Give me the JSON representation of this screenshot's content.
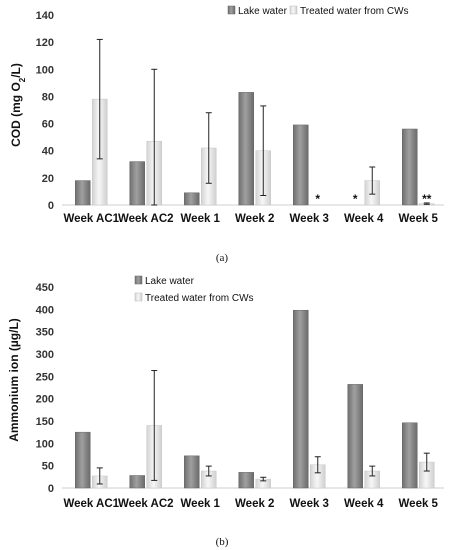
{
  "chart_data": [
    {
      "type": "bar",
      "categories": [
        "Week AC1",
        "Week AC2",
        "Week 1",
        "Week 2",
        "Week 3",
        "Week 4",
        "Week 5"
      ],
      "ylabel_main": "COD (mg O",
      "ylabel_sub": "2",
      "ylabel_tail": "/L)",
      "ylim": [
        0,
        140
      ],
      "yticks": [
        "0",
        "20",
        "40",
        "60",
        "80",
        "100",
        "120",
        "140"
      ],
      "ytick_values": [
        0,
        20,
        40,
        60,
        80,
        100,
        120,
        140
      ],
      "legend_position": "top-right",
      "series": [
        {
          "name": "Lake water",
          "values": [
            18,
            32,
            9,
            83,
            59,
            null,
            56
          ],
          "error": [
            null,
            null,
            null,
            null,
            null,
            null,
            null
          ],
          "color": "#8a8a8a"
        },
        {
          "name": "Treated water from CWs",
          "values": [
            78,
            47,
            42,
            40,
            null,
            18,
            1
          ],
          "error": [
            44,
            53,
            26,
            33,
            null,
            10,
            0.5
          ],
          "color": "#e6e6e6"
        }
      ],
      "annotations": [
        {
          "category": "Week 3",
          "series": "Treated water from CWs",
          "text": "*"
        },
        {
          "category": "Week 4",
          "series": "Lake water",
          "text": "*"
        },
        {
          "category": "Week 5",
          "series": "Treated water from CWs",
          "text": "**"
        }
      ],
      "caption": "(a)"
    },
    {
      "type": "bar",
      "categories": [
        "Week AC1",
        "Week AC2",
        "Week 1",
        "Week 2",
        "Week 3",
        "Week 4",
        "Week 5"
      ],
      "ylabel_main": "Ammonium ion (µg/L)",
      "ylim": [
        0,
        450
      ],
      "yticks": [
        "0",
        "50",
        "100",
        "150",
        "200",
        "250",
        "300",
        "350",
        "400",
        "450"
      ],
      "ytick_values": [
        0,
        50,
        100,
        150,
        200,
        250,
        300,
        350,
        400,
        450
      ],
      "legend_position": "top-left",
      "series": [
        {
          "name": "Lake water",
          "values": [
            125,
            28,
            72,
            35,
            398,
            232,
            146
          ],
          "error": [
            null,
            null,
            null,
            null,
            null,
            null,
            null
          ],
          "color": "#8a8a8a"
        },
        {
          "name": "Treated water from CWs",
          "values": [
            27,
            140,
            38,
            20,
            52,
            38,
            58
          ],
          "error": [
            18,
            123,
            11,
            4,
            18,
            11,
            20
          ],
          "color": "#e6e6e6"
        }
      ],
      "annotations": [],
      "caption": "(b)"
    }
  ]
}
